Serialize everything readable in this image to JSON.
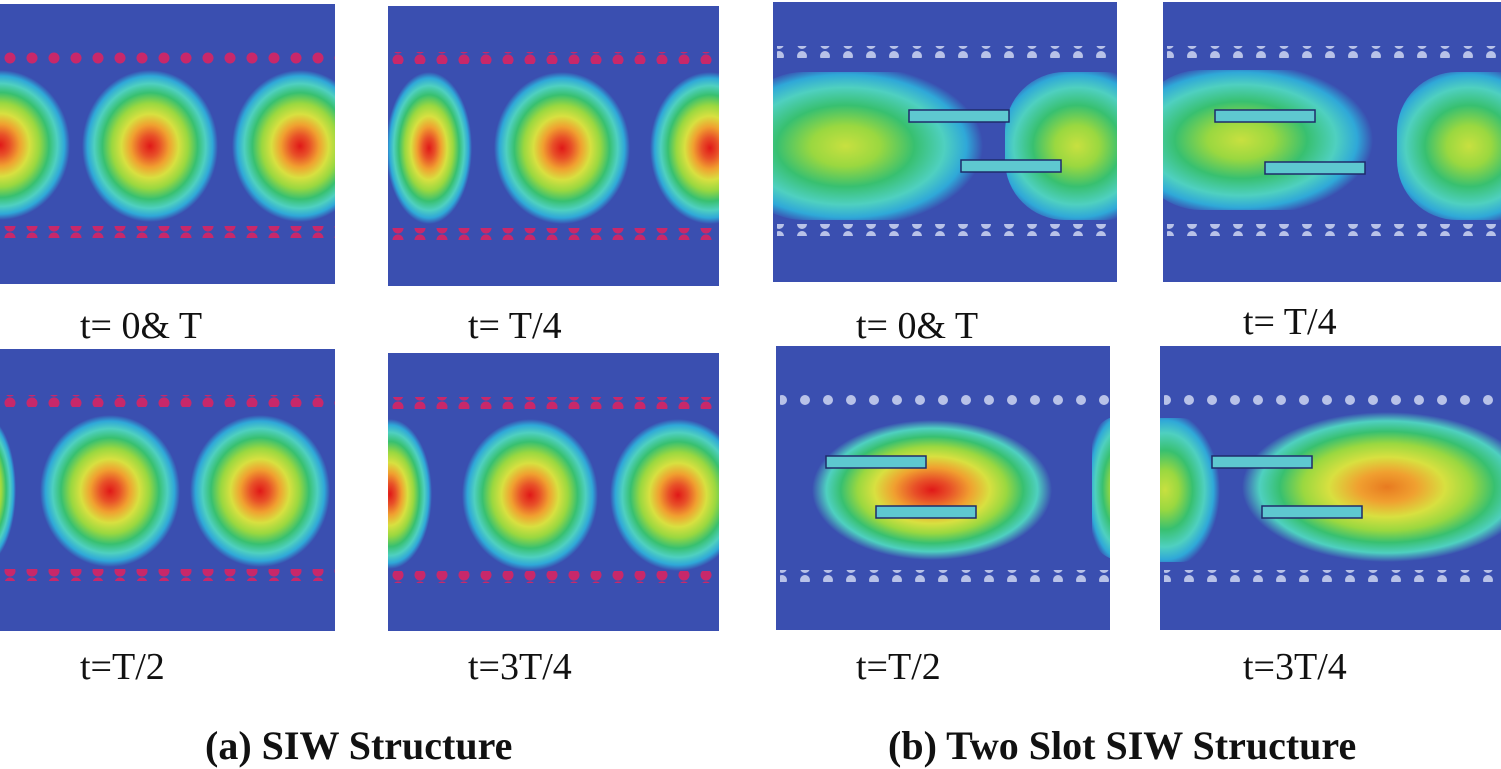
{
  "colors": {
    "background": "#3a4fb0",
    "via_siw": "#c8286a",
    "via_slot": "#b8c2e8",
    "slot_outline": "#1e2a6a"
  },
  "color_scale": [
    "#3a4fb0",
    "#2fa8d8",
    "#4fd0c0",
    "#38c070",
    "#9ad840",
    "#d8e040",
    "#f0a030",
    "#e85028",
    "#e01818"
  ],
  "group_a": {
    "caption": "(a) SIW Structure",
    "panels": [
      {
        "label": "t= 0& T"
      },
      {
        "label": "t= T/4"
      },
      {
        "label": "t=T/2"
      },
      {
        "label": "t=3T/4"
      }
    ]
  },
  "group_b": {
    "caption": "(b) Two Slot SIW Structure",
    "panels": [
      {
        "label": "t= 0& T"
      },
      {
        "label": "t= T/4"
      },
      {
        "label": "t=T/2"
      },
      {
        "label": "t=3T/4"
      }
    ]
  }
}
